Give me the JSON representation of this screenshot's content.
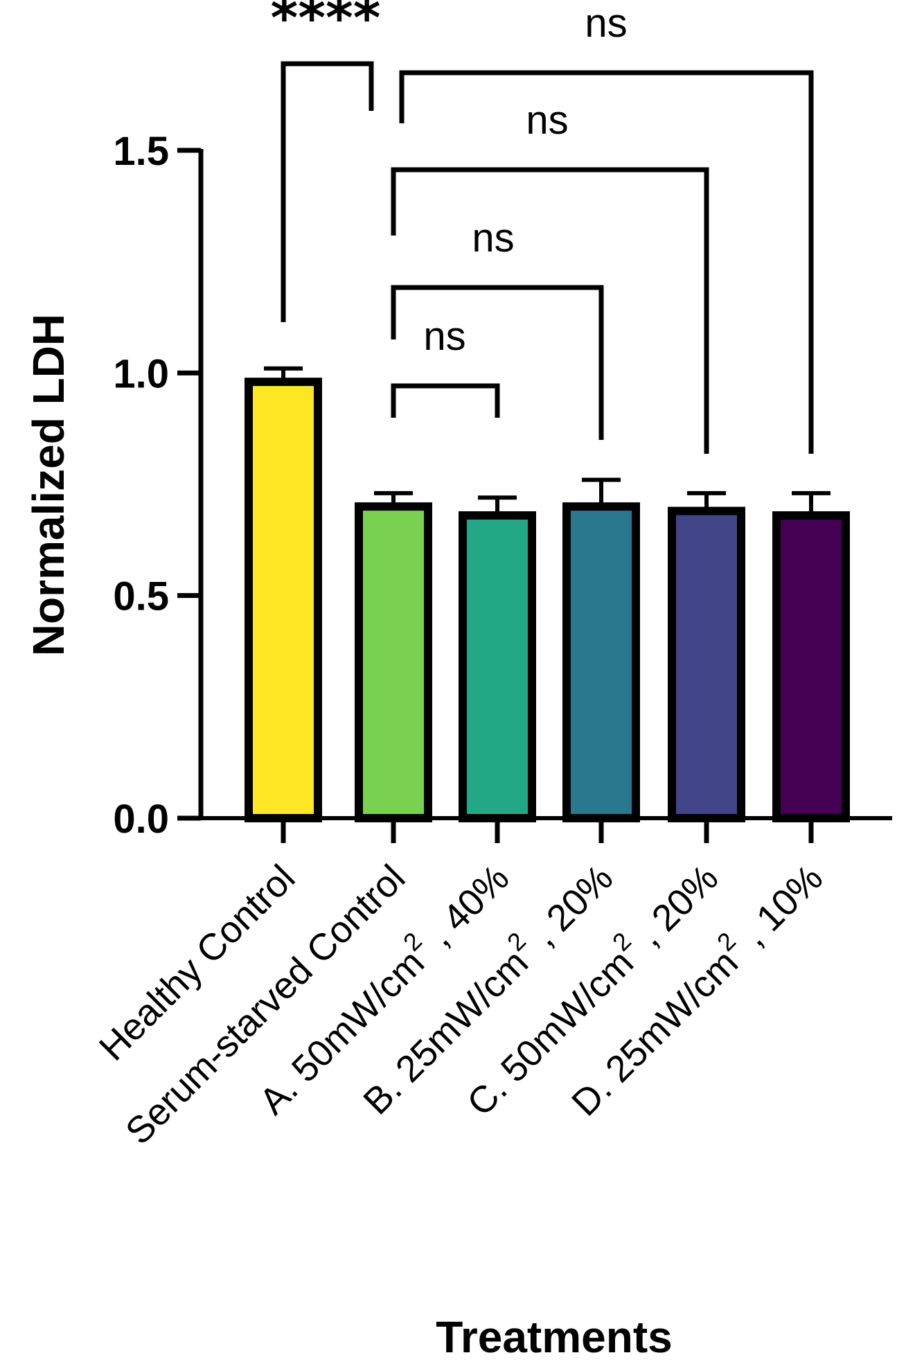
{
  "chart_data": {
    "type": "bar",
    "xlabel": "Treatments",
    "ylabel": "Normalized LDH",
    "ylim": [
      0,
      1.5
    ],
    "yticks": [
      "0.0",
      "0.5",
      "1.0",
      "1.5"
    ],
    "grid": false,
    "categories": [
      {
        "prefix": "Healthy Control",
        "sup": "",
        "suffix": ""
      },
      {
        "prefix": "Serum-starved Control",
        "sup": "",
        "suffix": ""
      },
      {
        "prefix": "A. 50mW/cm",
        "sup": "2",
        "suffix": " , 40%"
      },
      {
        "prefix": "B. 25mW/cm",
        "sup": "2",
        "suffix": " , 20%"
      },
      {
        "prefix": "C. 50mW/cm",
        "sup": "2",
        "suffix": " , 20%"
      },
      {
        "prefix": "D. 25mW/cm",
        "sup": "2",
        "suffix": " , 10%"
      }
    ],
    "values": [
      0.98,
      0.7,
      0.68,
      0.7,
      0.69,
      0.68
    ],
    "errors": [
      0.03,
      0.03,
      0.04,
      0.06,
      0.04,
      0.05
    ],
    "bar_colors": [
      "#fde725",
      "#7ad151",
      "#22a884",
      "#2a788e",
      "#414487",
      "#440154"
    ],
    "comparisons": [
      {
        "from": 0,
        "to": 1,
        "label": "****"
      },
      {
        "from": 1,
        "to": 2,
        "label": "ns"
      },
      {
        "from": 1,
        "to": 3,
        "label": "ns"
      },
      {
        "from": 1,
        "to": 4,
        "label": "ns"
      },
      {
        "from": 1,
        "to": 5,
        "label": "ns"
      }
    ]
  }
}
